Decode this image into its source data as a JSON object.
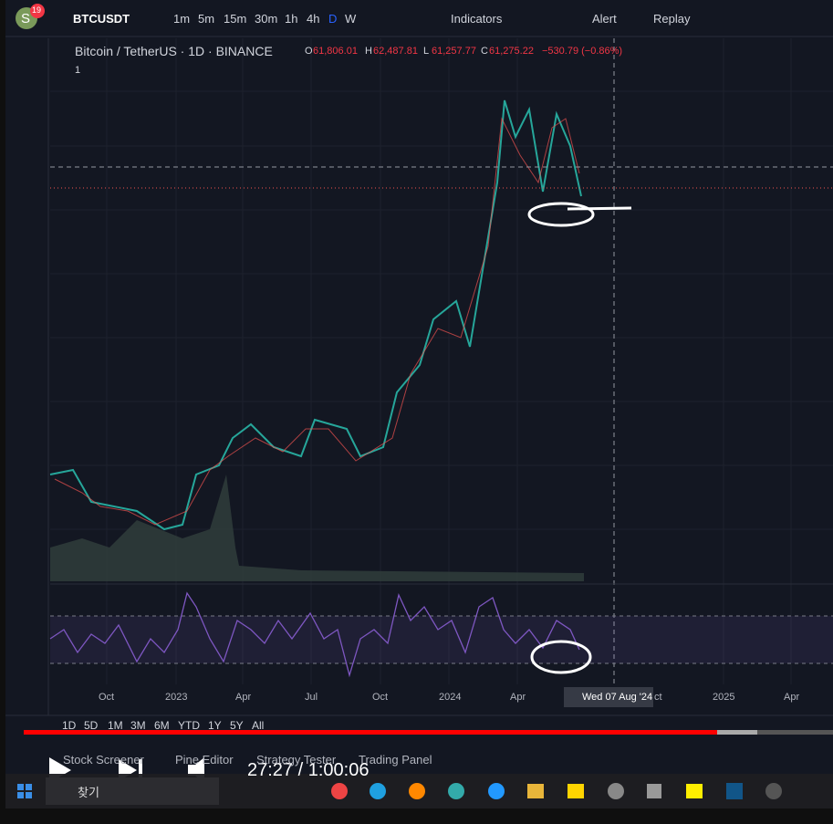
{
  "toolbar": {
    "avatar": "S",
    "badge": "19",
    "symbol": "BTCUSDT",
    "intervals": [
      "1m",
      "5m",
      "15m",
      "30m",
      "1h",
      "4h",
      "D",
      "W"
    ],
    "indicators": "Indicators",
    "alert": "Alert",
    "replay": "Replay"
  },
  "legend": {
    "title": "Bitcoin / TetherUS · 1D · BINANCE",
    "ohlc": [
      {
        "label": "O",
        "value": "61,806.01"
      },
      {
        "label": "H",
        "value": "62,487.81"
      },
      {
        "label": "L",
        "value": "61,257.77"
      },
      {
        "label": "C",
        "value": "61,275.22"
      }
    ],
    "change": "−530.79 (−0.86%)",
    "collapse": "1"
  },
  "x_axis": [
    "Oct",
    "2023",
    "Apr",
    "Jul",
    "Oct",
    "2024",
    "Apr",
    "Wed 07 Aug '24",
    "ct",
    "2025",
    "Apr"
  ],
  "ranges": [
    "1D",
    "5D",
    "1M",
    "3M",
    "6M",
    "YTD",
    "1Y",
    "5Y",
    "All"
  ],
  "bottom_tabs": [
    "Stock Screener",
    "Pine Editor",
    "Strategy Tester",
    "Trading Panel"
  ],
  "player": {
    "time": "27:27 / 1:00:06"
  },
  "taskbar": {
    "search": "찾기"
  }
}
